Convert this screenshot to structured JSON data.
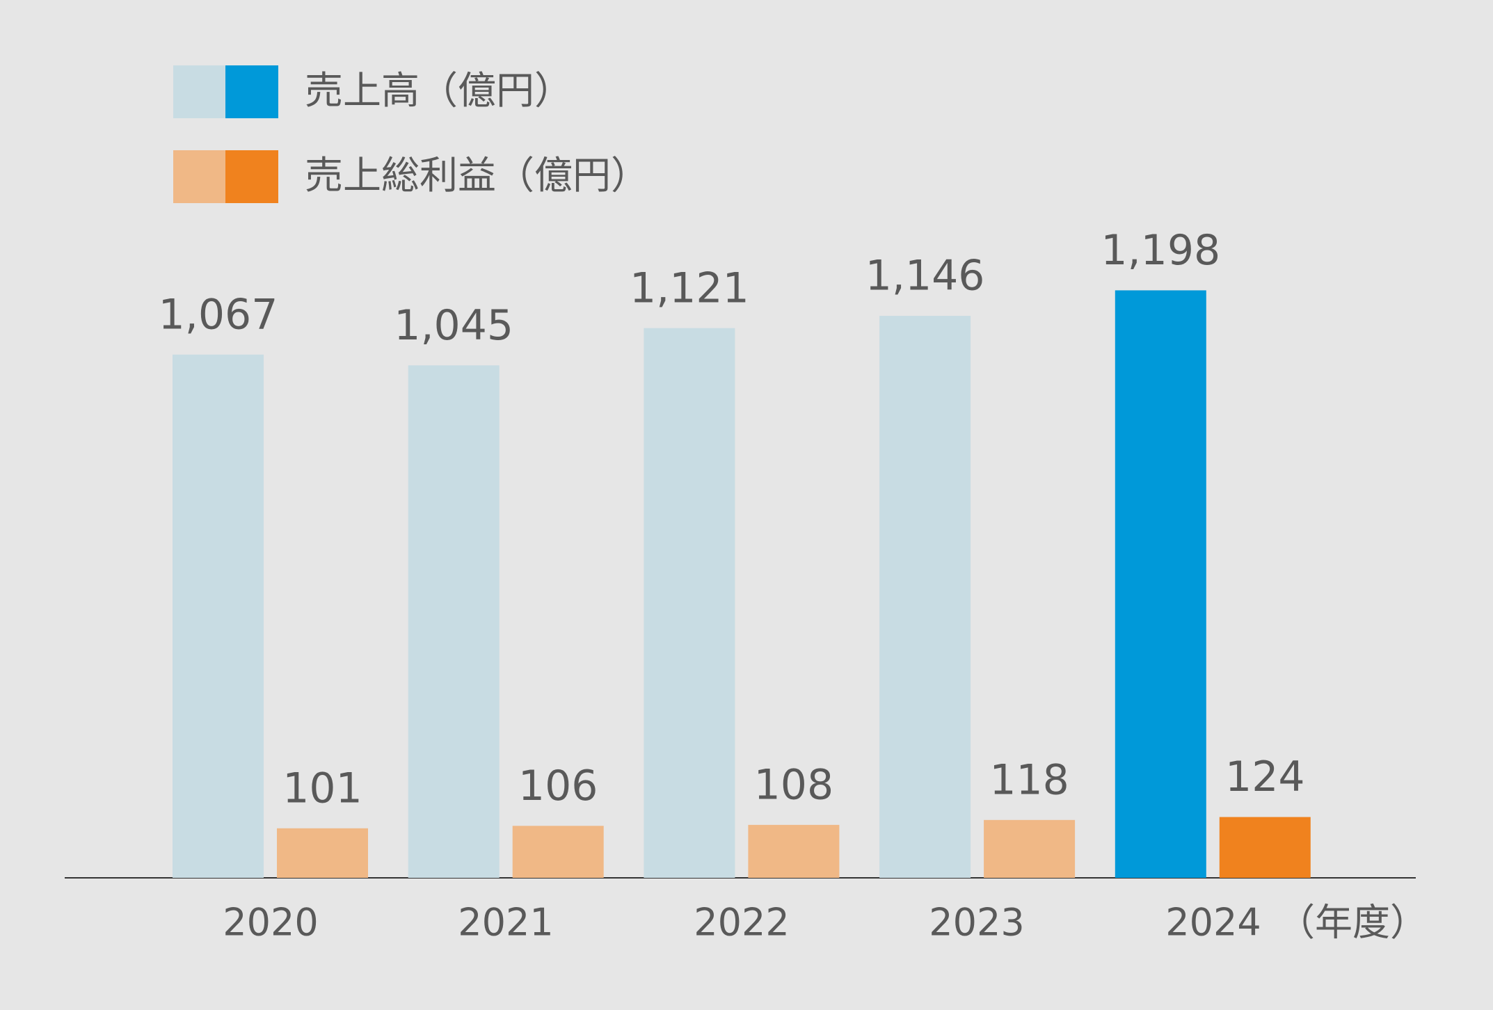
{
  "chart_data": {
    "type": "bar",
    "categories": [
      "2020",
      "2021",
      "2022",
      "2023",
      "2024"
    ],
    "x_label": "（年度）",
    "series": [
      {
        "name": "売上高（億円）",
        "colors": [
          "#c8dce3",
          "#c8dce3",
          "#c8dce3",
          "#c8dce3",
          "#0099d9"
        ],
        "values": [
          1067,
          1045,
          1121,
          1146,
          1198
        ],
        "value_labels": [
          "1,067",
          "1,045",
          "1,121",
          "1,146",
          "1,198"
        ]
      },
      {
        "name": "売上総利益（億円）",
        "colors": [
          "#f0b886",
          "#f0b886",
          "#f0b886",
          "#f0b886",
          "#f0821e"
        ],
        "values": [
          101,
          106,
          108,
          118,
          124
        ],
        "value_labels": [
          "101",
          "106",
          "108",
          "118",
          "124"
        ]
      }
    ]
  }
}
